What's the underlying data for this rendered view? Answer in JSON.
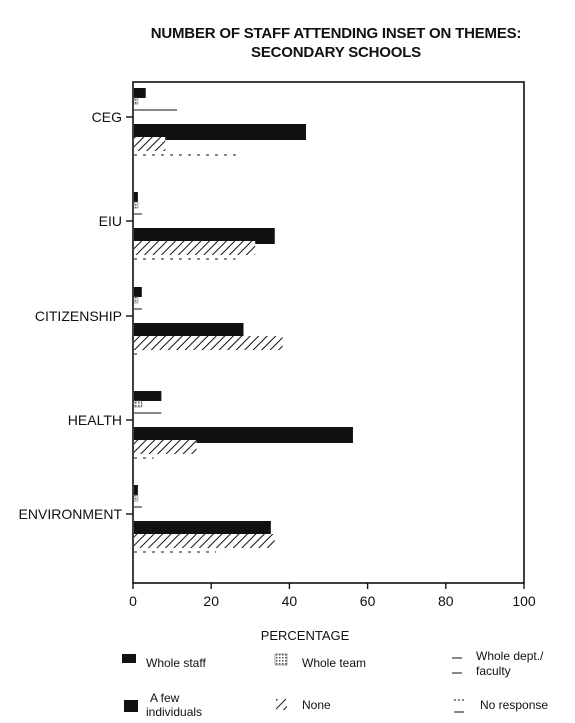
{
  "chart_data": {
    "type": "bar",
    "orientation": "horizontal",
    "title_line_1": "NUMBER OF STAFF ATTENDING INSET ON THEMES:",
    "title_line_2": "SECONDARY SCHOOLS",
    "xlabel": "PERCENTAGE",
    "ylabel": "",
    "xlim": [
      0,
      100
    ],
    "x_ticks": [
      "0",
      "20",
      "40",
      "60",
      "80",
      "100"
    ],
    "categories": [
      "CEG",
      "EIU",
      "CITIZENSHIP",
      "HEALTH",
      "ENVIRONMENT"
    ],
    "series": [
      {
        "name": "Whole staff",
        "pattern": "solid-small",
        "values": [
          3,
          1,
          2,
          7,
          1
        ]
      },
      {
        "name": "Whole team",
        "pattern": "dotted",
        "values": [
          1,
          1,
          1,
          2,
          1
        ]
      },
      {
        "name": "Whole dept./ faculty",
        "pattern": "thin-line",
        "values": [
          11,
          2,
          2,
          7,
          2
        ]
      },
      {
        "name": "A few individuals",
        "pattern": "solid",
        "values": [
          44,
          36,
          28,
          56,
          35
        ]
      },
      {
        "name": "None",
        "pattern": "hatched",
        "values": [
          8,
          31,
          38,
          16,
          36
        ]
      },
      {
        "name": "No response",
        "pattern": "dashed",
        "values": [
          27,
          26,
          1,
          5,
          21
        ]
      }
    ],
    "legend_placement": "bottom",
    "grid": false
  },
  "legend": {
    "items": [
      {
        "label": "Whole staff",
        "pattern": "solid-small"
      },
      {
        "label": "Whole team",
        "pattern": "dotted"
      },
      {
        "label_line_1": "Whole dept./",
        "label_line_2": "faculty",
        "pattern": "thin-line"
      },
      {
        "label_line_1": "A few",
        "label_line_2": "individuals",
        "pattern": "solid"
      },
      {
        "label": "None",
        "pattern": "hatched"
      },
      {
        "label": "No response",
        "pattern": "dashed"
      }
    ]
  },
  "colors": {
    "ink": "#111111",
    "background": "#ffffff",
    "dotted_fill": "#8a8a8a"
  }
}
